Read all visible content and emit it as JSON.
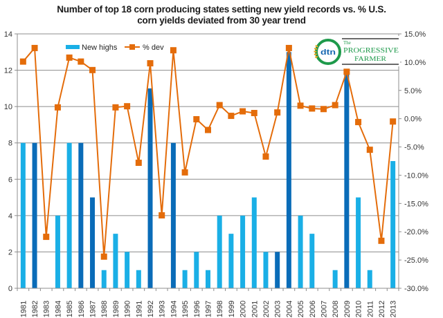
{
  "chart_data": {
    "type": "bar+line",
    "title_line1": "Number of top 18 corn producing states setting new yield records vs. % U.S.",
    "title_line2": "corn yields deviated from 30 year trend",
    "categories": [
      "1981",
      "1982",
      "1983",
      "1984",
      "1985",
      "1986",
      "1987",
      "1988",
      "1989",
      "1990",
      "1991",
      "1992",
      "1993",
      "1994",
      "1995",
      "1996",
      "1997",
      "1998",
      "1999",
      "2000",
      "2001",
      "2002",
      "2003",
      "2004",
      "2005",
      "2006",
      "2007",
      "2008",
      "2009",
      "2010",
      "2011",
      "2012",
      "2013"
    ],
    "series": [
      {
        "name": "New highs",
        "type": "bar",
        "axis": "left",
        "values": [
          8,
          8,
          0,
          4,
          8,
          8,
          5,
          1,
          3,
          2,
          1,
          11,
          0,
          8,
          1,
          2,
          1,
          4,
          3,
          4,
          5,
          2,
          2,
          13,
          4,
          3,
          0,
          1,
          12,
          5,
          1,
          0,
          7
        ],
        "highlight": [
          false,
          true,
          false,
          false,
          false,
          true,
          true,
          false,
          false,
          false,
          false,
          true,
          false,
          true,
          false,
          false,
          false,
          false,
          false,
          false,
          false,
          false,
          true,
          true,
          false,
          false,
          false,
          false,
          true,
          false,
          false,
          false,
          false
        ],
        "color": "#1AAFE6",
        "highlight_color": "#0A6CB8"
      },
      {
        "name": "% dev",
        "type": "line",
        "axis": "right",
        "values": [
          10.1,
          12.5,
          -20.9,
          2.0,
          10.8,
          10.1,
          8.6,
          -24.4,
          2.0,
          2.2,
          -7.8,
          9.8,
          -17.1,
          12.1,
          -9.5,
          -0.1,
          -2.0,
          2.4,
          0.5,
          1.3,
          1.0,
          -6.7,
          1.1,
          12.5,
          2.3,
          1.8,
          1.7,
          2.4,
          8.3,
          -0.6,
          -5.5,
          -21.6,
          -0.5
        ],
        "color": "#E46C0A"
      }
    ],
    "left_axis": {
      "min": 0,
      "max": 14,
      "step": 2,
      "ticks": [
        "0",
        "2",
        "4",
        "6",
        "8",
        "10",
        "12",
        "14"
      ]
    },
    "right_axis": {
      "min": -30,
      "max": 15,
      "step": 5,
      "ticks": [
        "-30.0%",
        "-25.0%",
        "-20.0%",
        "-15.0%",
        "-10.0%",
        "-5.0%",
        "0.0%",
        "5.0%",
        "10.0%",
        "15.0%"
      ]
    },
    "grid": true,
    "legend_position": "top-left",
    "legend": [
      "New highs",
      "% dev"
    ]
  },
  "logo": {
    "mark": "dtn",
    "line1_the": "The",
    "line1": "PROGRESSIVE",
    "line2": "FARMER"
  }
}
